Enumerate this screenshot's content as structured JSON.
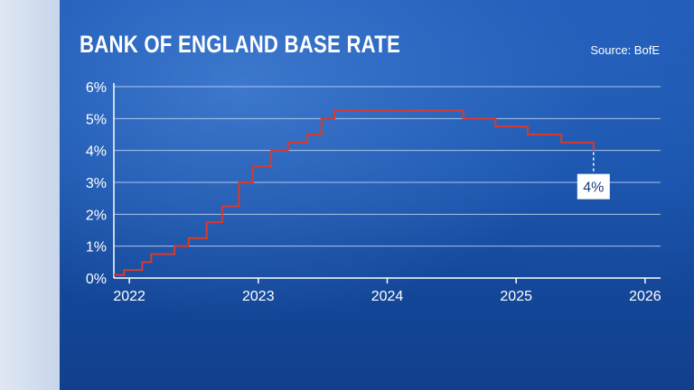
{
  "header": {
    "title": "BANK OF ENGLAND BASE RATE",
    "source": "Source: BofE"
  },
  "chart_data": {
    "type": "line",
    "step": true,
    "title": "BANK OF ENGLAND BASE RATE",
    "xlabel": "",
    "ylabel": "",
    "xlim": [
      2021.88,
      2026.12
    ],
    "ylim": [
      0,
      6
    ],
    "grid": true,
    "y_ticks": [
      0,
      1,
      2,
      3,
      4,
      5,
      6
    ],
    "y_tick_labels": [
      "0%",
      "1%",
      "2%",
      "3%",
      "4%",
      "5%",
      "6%"
    ],
    "x_ticks": [
      2022,
      2023,
      2024,
      2025,
      2026
    ],
    "x_tick_labels": [
      "2022",
      "2023",
      "2024",
      "2025",
      "2026"
    ],
    "series": [
      {
        "color": "#d93a2b",
        "x": [
          2021.88,
          2021.96,
          2022.1,
          2022.17,
          2022.35,
          2022.46,
          2022.6,
          2022.72,
          2022.85,
          2022.96,
          2023.1,
          2023.23,
          2023.38,
          2023.49,
          2023.59,
          2024.59,
          2024.84,
          2025.09,
          2025.35,
          2025.6
        ],
        "y": [
          0.1,
          0.25,
          0.5,
          0.75,
          1.0,
          1.25,
          1.75,
          2.25,
          3.0,
          3.5,
          4.0,
          4.25,
          4.5,
          5.0,
          5.25,
          5.0,
          4.75,
          4.5,
          4.25,
          4.0
        ]
      }
    ],
    "annotations": [
      {
        "x": 2025.6,
        "y": 4.0,
        "text": "4%"
      }
    ]
  },
  "colors": {
    "line": "#d93a2b",
    "grid": "#c7d6ee",
    "axis": "#ffffff",
    "label_box": "#ffffff",
    "label_text": "#1a3d7a"
  }
}
